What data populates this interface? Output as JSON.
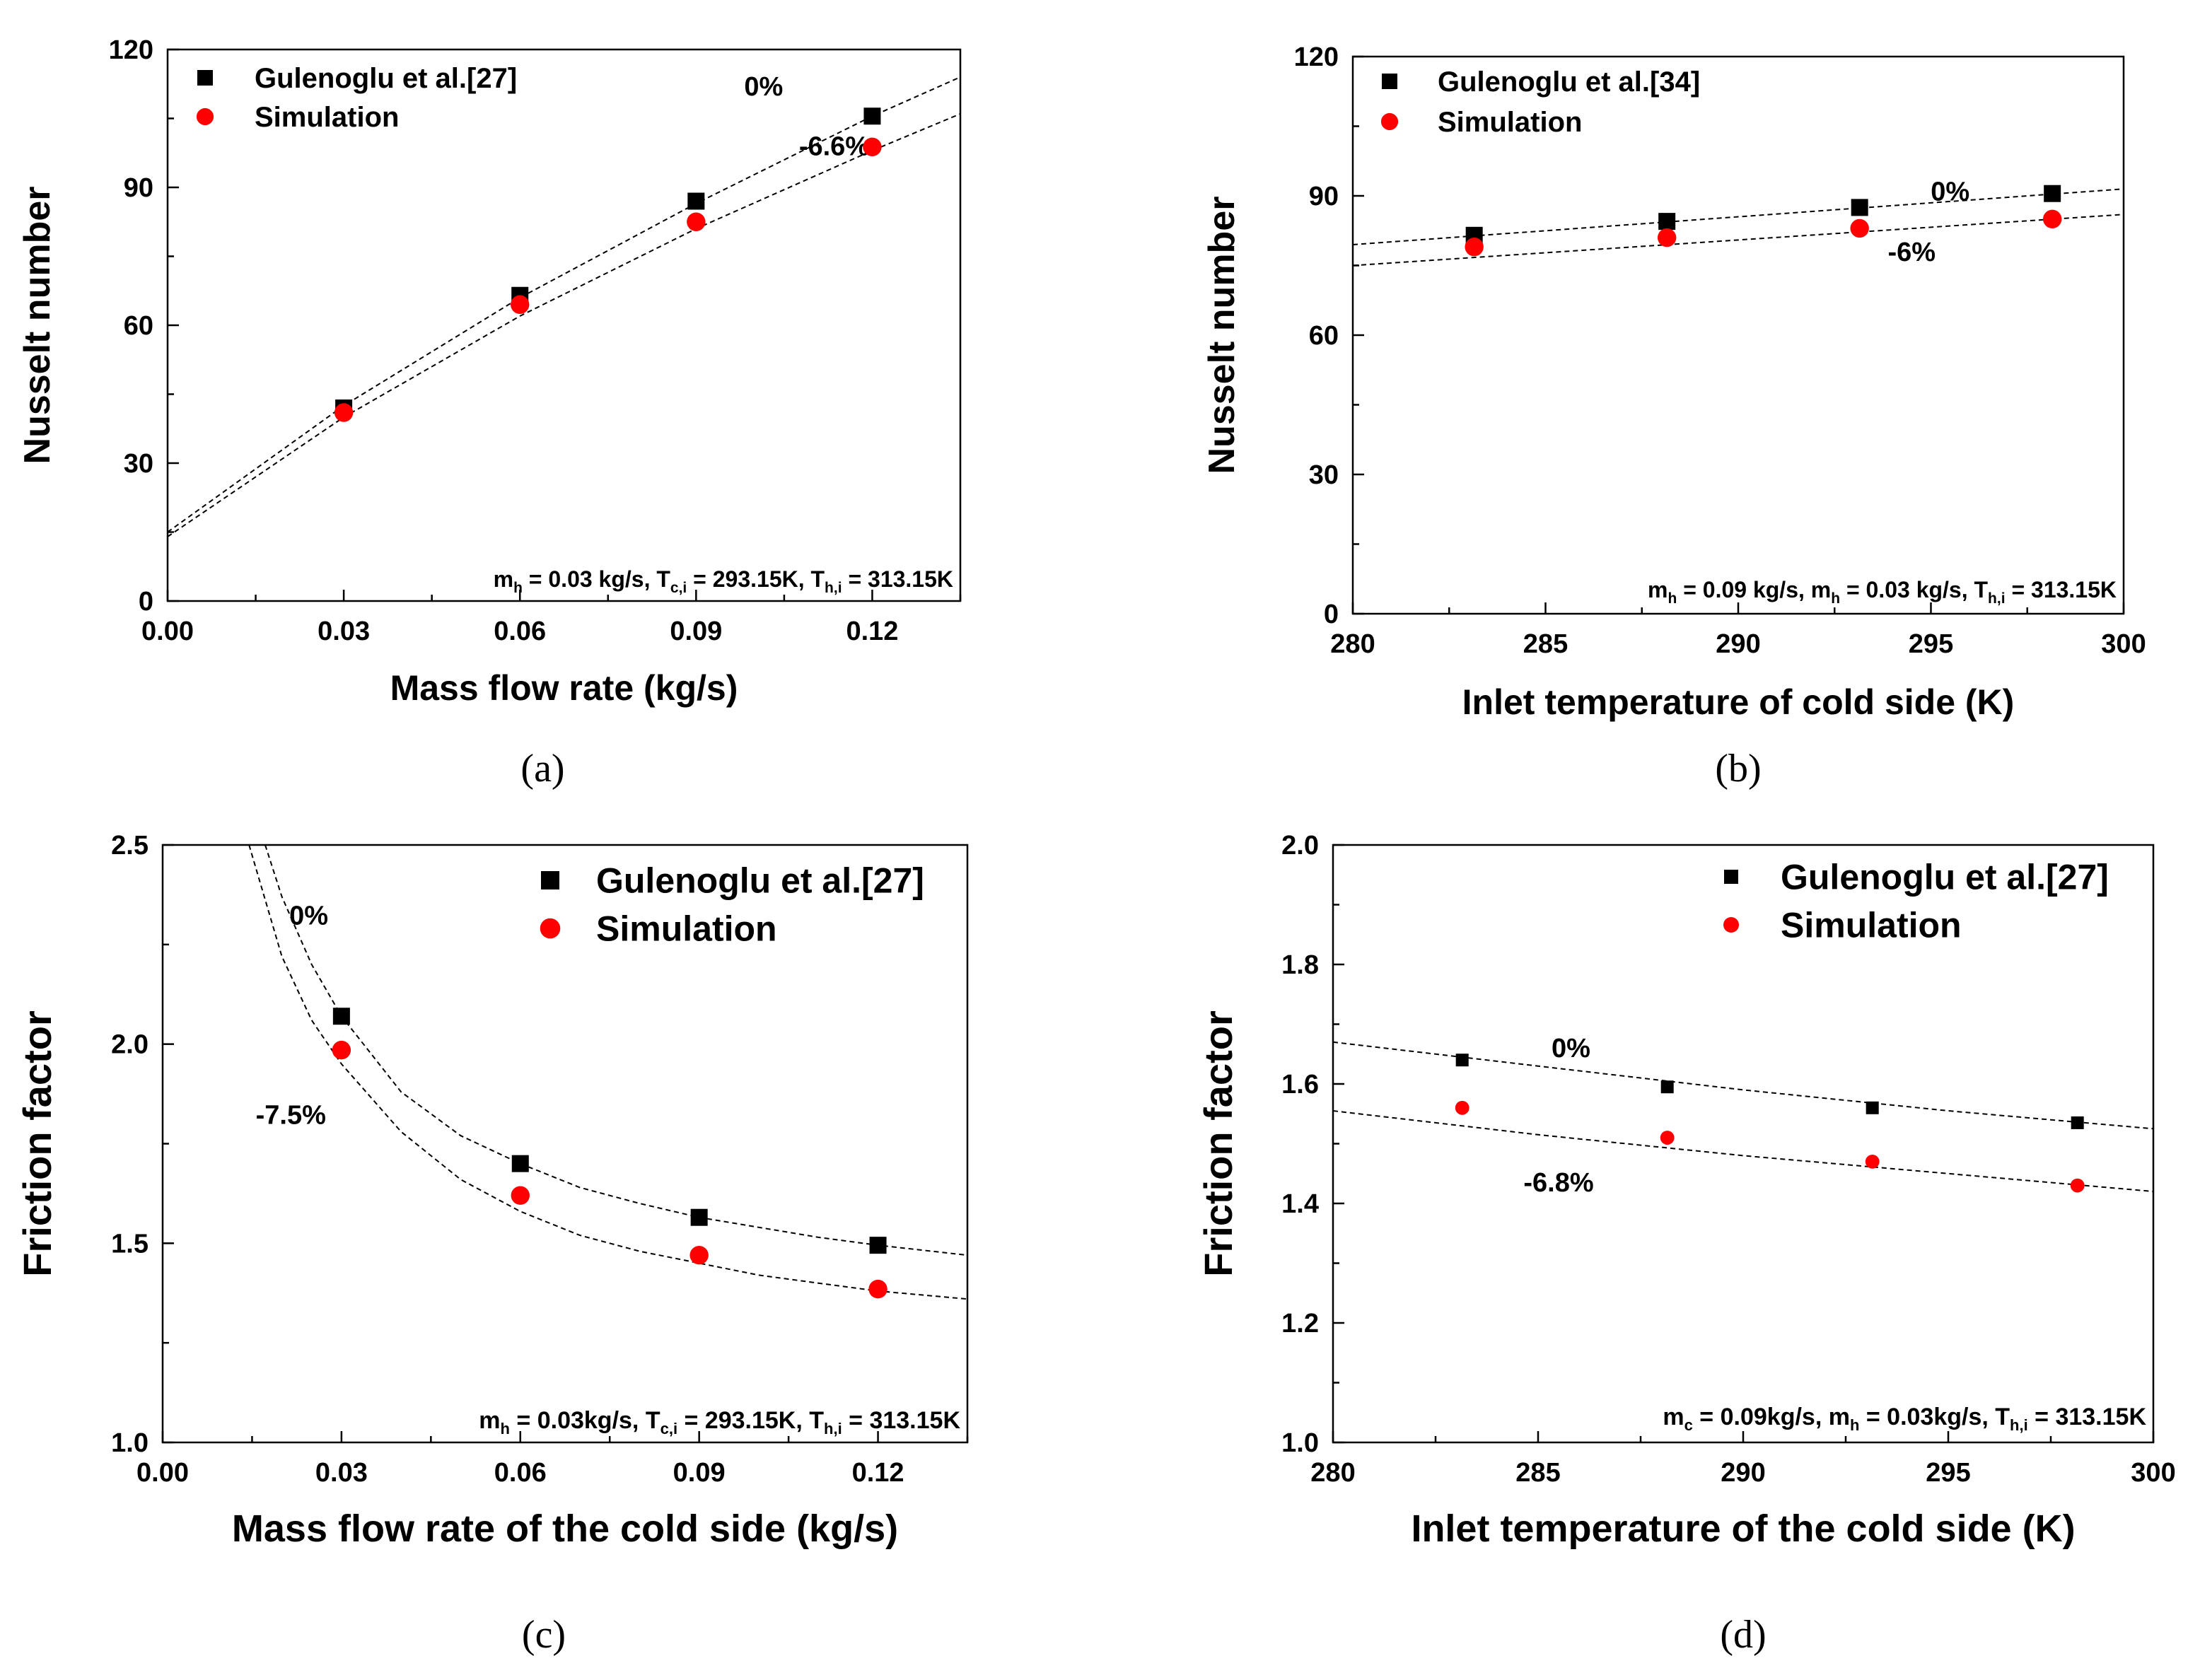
{
  "chart_data": [
    {
      "type": "scatter",
      "panel_label": "(a)",
      "xlabel": "Mass flow rate (kg/s)",
      "ylabel": "Nusselt number",
      "xlim": [
        0.0,
        0.135
      ],
      "ylim": [
        0,
        120
      ],
      "xticks": [
        "0.00",
        "0.03",
        "0.06",
        "0.09",
        "0.12"
      ],
      "xtick_values": [
        0.0,
        0.03,
        0.06,
        0.09,
        0.12
      ],
      "yticks": [
        "0",
        "30",
        "60",
        "90",
        "120"
      ],
      "ytick_values": [
        0,
        30,
        60,
        90,
        120
      ],
      "legend_position": "top-left",
      "series": [
        {
          "name": "Gulenoglu et al.[27]",
          "marker": "square",
          "color": "#000000",
          "x": [
            0.03,
            0.06,
            0.09,
            0.12
          ],
          "y": [
            42,
            66.5,
            87,
            105.5
          ]
        },
        {
          "name": "Simulation",
          "marker": "circle",
          "color": "#ff0000",
          "x": [
            0.03,
            0.06,
            0.09,
            0.12
          ],
          "y": [
            41,
            64.5,
            82.5,
            98.8
          ]
        }
      ],
      "fit_lines": [
        {
          "label": "0%",
          "x": [
            0.0,
            0.03,
            0.06,
            0.09,
            0.12,
            0.135
          ],
          "y": [
            15,
            42.5,
            66,
            86.5,
            105.5,
            114
          ]
        },
        {
          "label": "-6.6%",
          "x": [
            0.0,
            0.03,
            0.06,
            0.09,
            0.12,
            0.135
          ],
          "y": [
            14,
            40,
            62,
            81,
            98,
            106
          ]
        }
      ],
      "annotation": {
        "parts": [
          [
            "m",
            ""
          ],
          [
            "h",
            "sub"
          ],
          [
            " = 0.03 kg/s, T",
            ""
          ],
          [
            "c,i",
            "sub"
          ],
          [
            " = 293.15K, T",
            ""
          ],
          [
            "h,i",
            "sub"
          ],
          [
            " = 313.15K",
            ""
          ]
        ]
      }
    },
    {
      "type": "scatter",
      "panel_label": "(b)",
      "xlabel": "Inlet temperature of cold side (K)",
      "ylabel": "Nusselt number",
      "xlim": [
        280,
        300
      ],
      "ylim": [
        0,
        120
      ],
      "xticks": [
        "280",
        "285",
        "290",
        "295",
        "300"
      ],
      "xtick_values": [
        280,
        285,
        290,
        295,
        300
      ],
      "yticks": [
        "0",
        "30",
        "60",
        "90",
        "120"
      ],
      "ytick_values": [
        0,
        30,
        60,
        90,
        120
      ],
      "legend_position": "top-left",
      "series": [
        {
          "name": "Gulenoglu et al.[34]",
          "marker": "square",
          "color": "#000000",
          "x": [
            283.15,
            288.15,
            293.15,
            298.15
          ],
          "y": [
            81.5,
            84.5,
            87.5,
            90.5
          ]
        },
        {
          "name": "Simulation",
          "marker": "circle",
          "color": "#ff0000",
          "x": [
            283.15,
            288.15,
            293.15,
            298.15
          ],
          "y": [
            79,
            81,
            83,
            85
          ]
        }
      ],
      "fit_lines": [
        {
          "label": "0%",
          "x": [
            280,
            300
          ],
          "y": [
            79.5,
            91.5
          ]
        },
        {
          "label": "-6%",
          "x": [
            280,
            300
          ],
          "y": [
            75,
            86
          ]
        }
      ],
      "annotation": {
        "parts": [
          [
            "m",
            ""
          ],
          [
            "h",
            "sub"
          ],
          [
            " = 0.09 kg/s, m",
            ""
          ],
          [
            "h",
            "sub"
          ],
          [
            " = 0.03 kg/s, T",
            ""
          ],
          [
            "h,i",
            "sub"
          ],
          [
            " = 313.15K",
            ""
          ]
        ]
      }
    },
    {
      "type": "scatter",
      "panel_label": "(c)",
      "xlabel": "Mass flow rate of the cold side (kg/s)",
      "ylabel": "Friction factor",
      "xlim": [
        0.0,
        0.135
      ],
      "ylim": [
        1.0,
        2.5
      ],
      "xticks": [
        "0.00",
        "0.03",
        "0.06",
        "0.09",
        "0.12"
      ],
      "xtick_values": [
        0.0,
        0.03,
        0.06,
        0.09,
        0.12
      ],
      "yticks": [
        "1.0",
        "1.5",
        "2.0",
        "2.5"
      ],
      "ytick_values": [
        1.0,
        1.5,
        2.0,
        2.5
      ],
      "legend_position": "top-right",
      "series": [
        {
          "name": "Gulenoglu et al.[27]",
          "marker": "square",
          "color": "#000000",
          "x": [
            0.03,
            0.06,
            0.09,
            0.12
          ],
          "y": [
            2.07,
            1.7,
            1.565,
            1.495
          ]
        },
        {
          "name": "Simulation",
          "marker": "circle",
          "color": "#ff0000",
          "x": [
            0.03,
            0.06,
            0.09,
            0.12
          ],
          "y": [
            1.985,
            1.62,
            1.47,
            1.385
          ]
        }
      ],
      "fit_lines": [
        {
          "label": "0%",
          "x": [
            0.0172,
            0.02,
            0.025,
            0.03,
            0.04,
            0.05,
            0.06,
            0.07,
            0.08,
            0.09,
            0.1,
            0.11,
            0.12,
            0.135
          ],
          "y": [
            2.5,
            2.37,
            2.2,
            2.07,
            1.88,
            1.77,
            1.7,
            1.64,
            1.6,
            1.565,
            1.54,
            1.515,
            1.495,
            1.47
          ]
        },
        {
          "label": "-7.5%",
          "x": [
            0.0145,
            0.02,
            0.025,
            0.03,
            0.04,
            0.05,
            0.06,
            0.07,
            0.08,
            0.09,
            0.1,
            0.11,
            0.12,
            0.135
          ],
          "y": [
            2.5,
            2.22,
            2.06,
            1.95,
            1.78,
            1.66,
            1.58,
            1.52,
            1.48,
            1.45,
            1.42,
            1.4,
            1.38,
            1.36
          ]
        }
      ],
      "annotation": {
        "parts": [
          [
            "m",
            ""
          ],
          [
            "h",
            "sub"
          ],
          [
            " = 0.03kg/s, T",
            ""
          ],
          [
            "c,i",
            "sub"
          ],
          [
            " = 293.15K, T",
            ""
          ],
          [
            "h,i",
            "sub"
          ],
          [
            " = 313.15K",
            ""
          ]
        ]
      }
    },
    {
      "type": "scatter",
      "panel_label": "(d)",
      "xlabel": "Inlet temperature of the cold side (K)",
      "ylabel": "Friction factor",
      "xlim": [
        280,
        300
      ],
      "ylim": [
        1.0,
        2.0
      ],
      "xticks": [
        "280",
        "285",
        "290",
        "295",
        "300"
      ],
      "xtick_values": [
        280,
        285,
        290,
        295,
        300
      ],
      "yticks": [
        "1.0",
        "1.2",
        "1.4",
        "1.6",
        "1.8",
        "2.0"
      ],
      "ytick_values": [
        1.0,
        1.2,
        1.4,
        1.6,
        1.8,
        2.0
      ],
      "legend_position": "top-right",
      "series": [
        {
          "name": "Gulenoglu et al.[27]",
          "marker": "square",
          "color": "#000000",
          "x": [
            283.15,
            288.15,
            293.15,
            298.15
          ],
          "y": [
            1.64,
            1.595,
            1.56,
            1.535
          ]
        },
        {
          "name": "Simulation",
          "marker": "circle",
          "color": "#ff0000",
          "x": [
            283.15,
            288.15,
            293.15,
            298.15
          ],
          "y": [
            1.56,
            1.51,
            1.47,
            1.43
          ]
        }
      ],
      "fit_lines": [
        {
          "label": "0%",
          "x": [
            280,
            285,
            290,
            295,
            300
          ],
          "y": [
            1.67,
            1.63,
            1.59,
            1.555,
            1.525
          ]
        },
        {
          "label": "-6.8%",
          "x": [
            280,
            285,
            290,
            295,
            300
          ],
          "y": [
            1.555,
            1.515,
            1.48,
            1.45,
            1.42
          ]
        }
      ],
      "annotation": {
        "parts": [
          [
            "m",
            ""
          ],
          [
            "c",
            "sub"
          ],
          [
            " = 0.09kg/s, m",
            ""
          ],
          [
            "h",
            "sub"
          ],
          [
            " = 0.03kg/s, T",
            ""
          ],
          [
            "h,i",
            "sub"
          ],
          [
            " = 313.15K",
            ""
          ]
        ]
      }
    }
  ]
}
